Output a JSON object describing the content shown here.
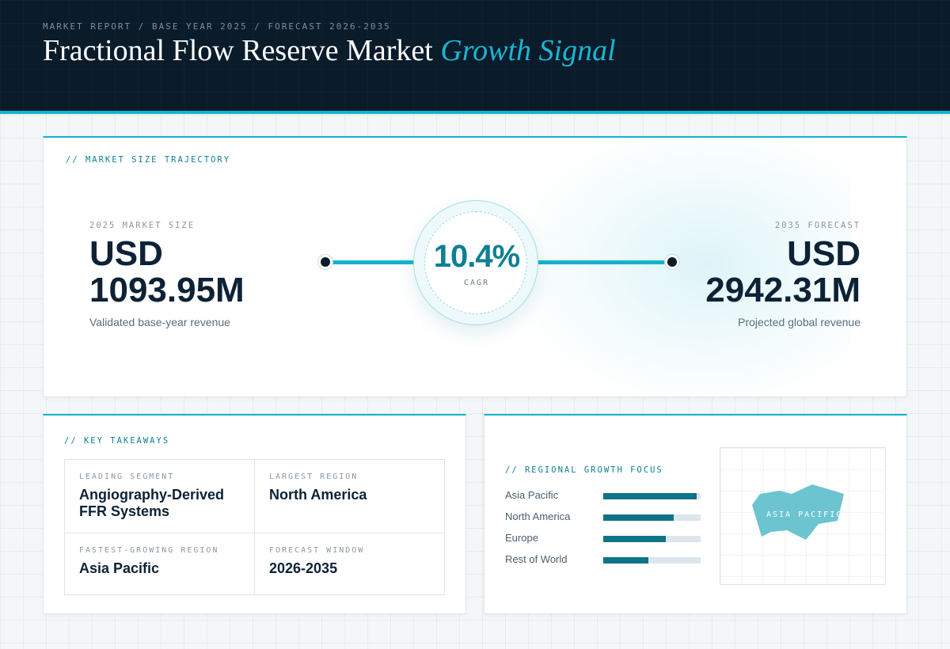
{
  "header": {
    "breadcrumb": "MARKET REPORT / BASE YEAR 2025 / FORECAST 2026-2035",
    "title_main": "Fractional Flow Reserve Market",
    "title_accent": "Growth Signal"
  },
  "trajectory": {
    "section_label": "// MARKET SIZE TRAJECTORY",
    "base": {
      "eyebrow": "2025 MARKET SIZE",
      "currency": "USD",
      "value": "1093.95M",
      "note": "Validated base-year revenue"
    },
    "cagr": {
      "value": "10.4%",
      "label": "CAGR"
    },
    "forecast": {
      "eyebrow": "2035 FORECAST",
      "currency": "USD",
      "value": "2942.31M",
      "note": "Projected global revenue"
    }
  },
  "takeaways": {
    "section_label": "// KEY TAKEAWAYS",
    "items": [
      {
        "label": "LEADING SEGMENT",
        "value": "Angiography-Derived FFR Systems"
      },
      {
        "label": "LARGEST REGION",
        "value": "North America"
      },
      {
        "label": "FASTEST-GROWING REGION",
        "value": "Asia Pacific"
      },
      {
        "label": "FORECAST WINDOW",
        "value": "2026-2035"
      }
    ]
  },
  "regional": {
    "section_label": "// REGIONAL GROWTH FOCUS",
    "bars": [
      {
        "name": "Asia Pacific",
        "level": 0.96
      },
      {
        "name": "North America",
        "level": 0.72
      },
      {
        "name": "Europe",
        "level": 0.64
      },
      {
        "name": "Rest of World",
        "level": 0.46
      }
    ],
    "map_label": "ASIA PACIFIC",
    "map_color": "#6cc4d0"
  },
  "colors": {
    "accent": "#12b3cf",
    "dark": "#0a1b2a",
    "bar_fill": "#0e7487"
  }
}
